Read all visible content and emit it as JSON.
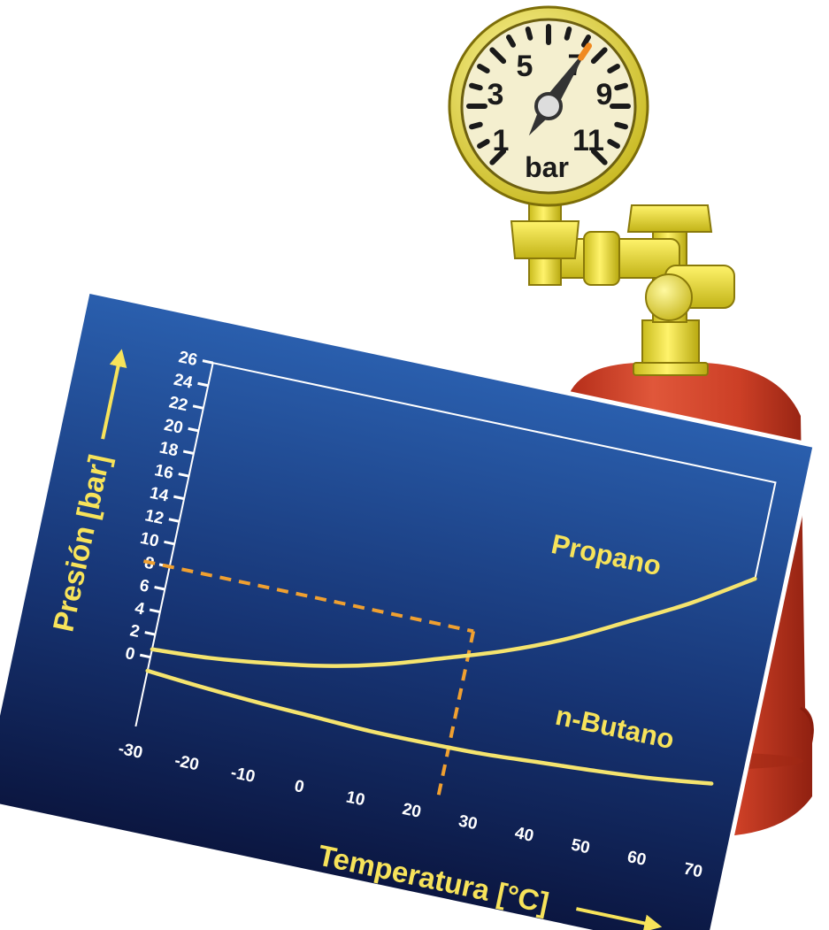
{
  "gauge": {
    "numbers": [
      "1",
      "3",
      "5",
      "7",
      "9",
      "11"
    ],
    "unit": "bar",
    "reading": 7.5
  },
  "colors": {
    "panel_top": "#1f4f9a",
    "panel_bottom": "#0c1a45",
    "curve": "#f5e46e",
    "dashed": "#f0a030",
    "label": "#f7e35a",
    "cylinder": "#d0442c",
    "brass": "#f2e640",
    "gauge_face": "#f4efcf"
  },
  "chart_data": {
    "type": "line",
    "xlabel": "Temperatura [°C]",
    "ylabel": "Presión [bar]",
    "xlim": [
      -30,
      70
    ],
    "ylim": [
      0,
      26
    ],
    "x_ticks": [
      "-30",
      "-20",
      "-10",
      "0",
      "10",
      "20",
      "30",
      "40",
      "50",
      "60",
      "70"
    ],
    "y_ticks": [
      "0",
      "2",
      "4",
      "6",
      "8",
      "10",
      "12",
      "14",
      "16",
      "18",
      "20",
      "22",
      "24",
      "26"
    ],
    "grid": false,
    "series": [
      {
        "name": "Propano",
        "x": [
          -30,
          -20,
          -10,
          0,
          10,
          20,
          30,
          40,
          50,
          60,
          70
        ],
        "values": [
          0.7,
          1.0,
          1.6,
          2.4,
          3.6,
          5.2,
          6.9,
          9.0,
          11.6,
          14.3,
          17.5
        ]
      },
      {
        "name": "n-Butano",
        "x": [
          -30,
          -20,
          -10,
          0,
          10,
          20,
          30,
          40,
          50,
          60,
          70
        ],
        "values": [
          -1.2,
          -1.6,
          -1.9,
          -2.1,
          -2.3,
          -2.3,
          -2.2,
          -1.9,
          -1.6,
          -1.2,
          -0.6
        ]
      }
    ],
    "annotations": [
      {
        "type": "reference-line",
        "x": 20,
        "y": 8
      }
    ]
  }
}
